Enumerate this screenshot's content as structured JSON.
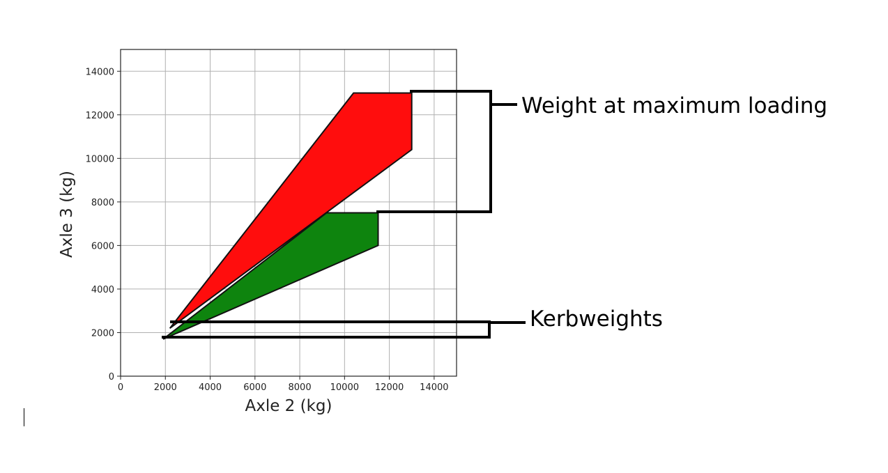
{
  "chart_data": {
    "type": "area",
    "xlabel": "Axle 2 (kg)",
    "ylabel": "Axle 3 (kg)",
    "xlim": [
      0,
      15000
    ],
    "ylim": [
      0,
      15000
    ],
    "xticks": [
      0,
      2000,
      4000,
      6000,
      8000,
      10000,
      12000,
      14000
    ],
    "yticks": [
      0,
      2000,
      4000,
      6000,
      8000,
      10000,
      12000,
      14000
    ],
    "grid": true,
    "regions": [
      {
        "color": "#ff0d0d",
        "points": [
          [
            2200,
            2200
          ],
          [
            10400,
            13000
          ],
          [
            13000,
            13000
          ],
          [
            13000,
            10400
          ],
          [
            2200,
            2200
          ]
        ]
      },
      {
        "color": "#0e840e",
        "points": [
          [
            1900,
            1700
          ],
          [
            9200,
            7500
          ],
          [
            11500,
            7500
          ],
          [
            11500,
            6000
          ],
          [
            1900,
            1700
          ]
        ]
      }
    ],
    "annotations": [
      {
        "text": "Weight at maximum loading",
        "bracket_from": [
          [
            13000,
            13000
          ],
          [
            11500,
            7500
          ]
        ]
      },
      {
        "text": "Kerbweights",
        "bracket_from": [
          [
            2200,
            2400
          ],
          [
            2000,
            1700
          ]
        ]
      }
    ]
  }
}
